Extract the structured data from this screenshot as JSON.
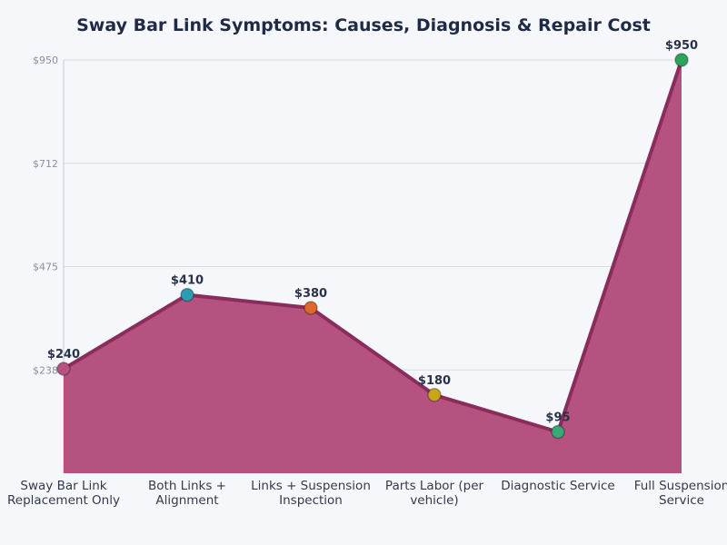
{
  "chart_data": {
    "type": "area",
    "title": "Sway Bar Link Symptoms: Causes, Diagnosis & Repair Cost",
    "xlabel": "",
    "ylabel": "",
    "categories": [
      [
        "Sway Bar Link",
        "Replacement Only"
      ],
      [
        "Both Links +",
        "Alignment"
      ],
      [
        "Links + Suspension",
        "Inspection"
      ],
      [
        "Parts Labor (per",
        "vehicle)"
      ],
      [
        "Diagnostic Service"
      ],
      [
        "Full Suspension",
        "Service"
      ]
    ],
    "values": [
      240,
      410,
      380,
      180,
      95,
      950
    ],
    "data_labels": [
      "$240",
      "$410",
      "$380",
      "$180",
      "$95",
      "$950"
    ],
    "ylim": [
      0,
      950
    ],
    "yticks": [
      237.5,
      475,
      712.5,
      950
    ],
    "ytick_labels": [
      "$238",
      "$475",
      "$712",
      "$950"
    ],
    "grid": true,
    "colors": {
      "fill": "#b5527f",
      "line": "#8a2d5c",
      "markers": [
        "#b5527f",
        "#2a9db3",
        "#dd6a2c",
        "#c9a51c",
        "#3aa877",
        "#2ea45a"
      ]
    }
  }
}
